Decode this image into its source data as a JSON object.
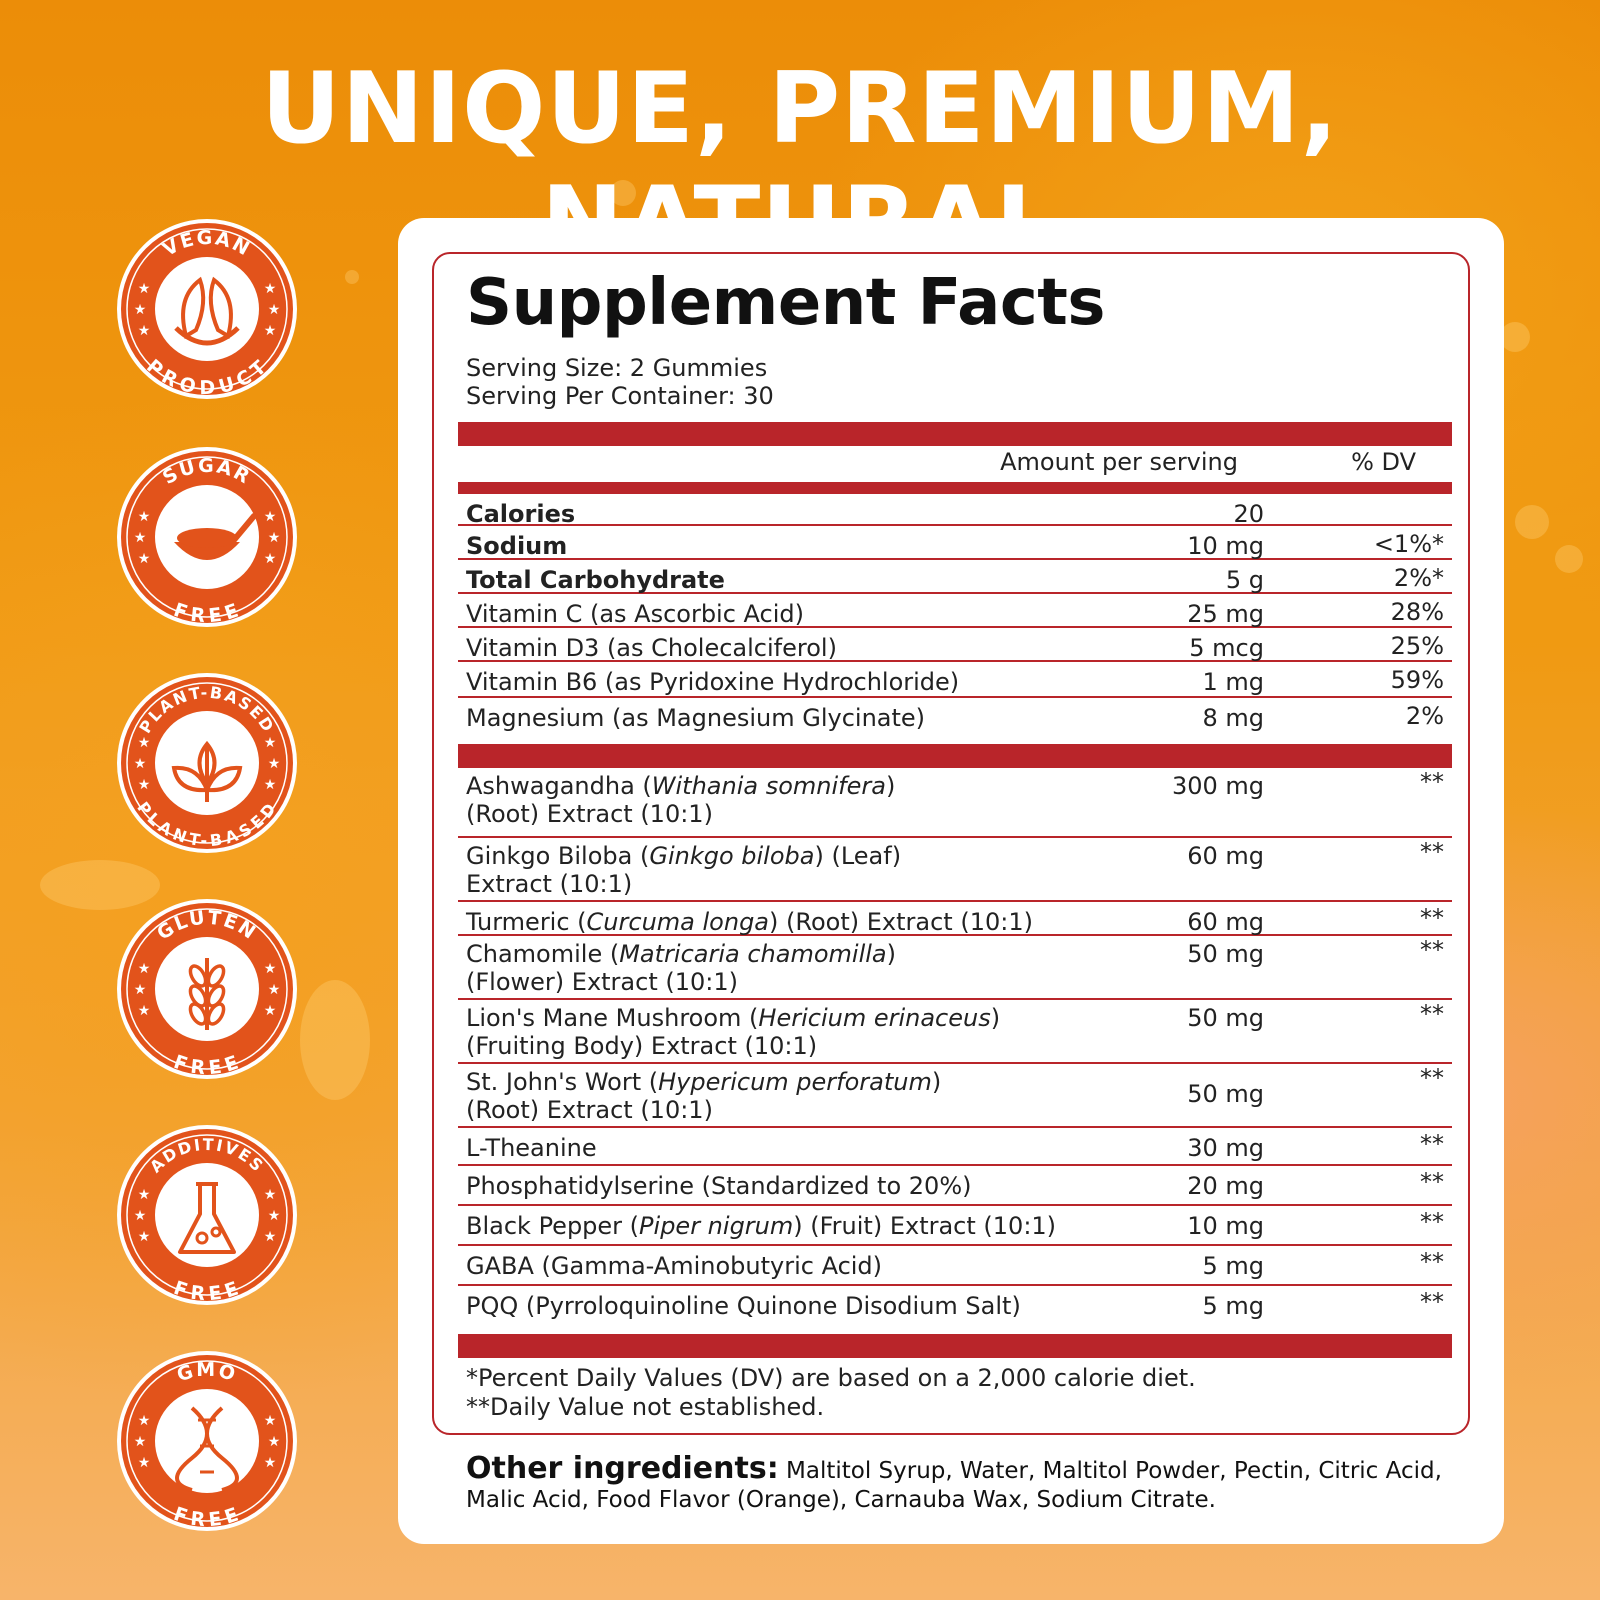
{
  "headline": "UNIQUE, PREMIUM, NATURAL",
  "badges": [
    {
      "top_text": "VEGAN",
      "bottom_text": "PRODUCT",
      "icon": "leaf-hands-icon"
    },
    {
      "top_text": "SUGAR",
      "bottom_text": "FREE",
      "icon": "sugar-spoon-icon"
    },
    {
      "top_text": "PLANT-BASED",
      "bottom_text": "PLANT-BASED",
      "icon": "plant-icon"
    },
    {
      "top_text": "GLUTEN",
      "bottom_text": "FREE",
      "icon": "wheat-icon"
    },
    {
      "top_text": "ADDITIVES",
      "bottom_text": "FREE",
      "icon": "flask-icon"
    },
    {
      "top_text": "GMO",
      "bottom_text": "FREE",
      "icon": "dna-icon"
    }
  ],
  "facts": {
    "title": "Supplement Facts",
    "serving_size": "Serving Size: 2 Gummies",
    "serving_per_container": "Serving Per Container: 30",
    "amount_header": "Amount per serving",
    "dv_header": "% DV",
    "nutrients": [
      {
        "name": "Calories",
        "amount": "20",
        "dv": ""
      },
      {
        "name": "Sodium",
        "amount": "10 mg",
        "dv": "<1%*"
      },
      {
        "name": "Total Carbohydrate",
        "amount": "5 g",
        "dv": "2%*"
      },
      {
        "name": "Vitamin C (as Ascorbic Acid)",
        "amount": "25 mg",
        "dv": "28%"
      },
      {
        "name": "Vitamin D3 (as Cholecalciferol)",
        "amount": "5 mcg",
        "dv": "25%"
      },
      {
        "name": "Vitamin B6 (as Pyridoxine Hydrochloride)",
        "amount": "1 mg",
        "dv": "59%"
      },
      {
        "name": "Magnesium (as Magnesium Glycinate)",
        "amount": "8 mg",
        "dv": "2%"
      }
    ],
    "extracts": [
      {
        "name_a": "Ashwagandha (",
        "latin": "Withania somnifera",
        "name_b": ")",
        "line2": "(Root) Extract (10:1)",
        "amount": "300 mg",
        "dv": "**"
      },
      {
        "name_a": "Ginkgo Biloba (",
        "latin": "Ginkgo biloba",
        "name_b": ") (Leaf)",
        "line2": "Extract (10:1)",
        "amount": "60 mg",
        "dv": "**"
      },
      {
        "name_a": "Turmeric (",
        "latin": "Curcuma longa",
        "name_b": ") (Root) Extract (10:1)",
        "line2": "",
        "amount": "60 mg",
        "dv": "**"
      },
      {
        "name_a": "Chamomile (",
        "latin": "Matricaria chamomilla",
        "name_b": ")",
        "line2": "(Flower) Extract (10:1)",
        "amount": "50 mg",
        "dv": "**"
      },
      {
        "name_a": "Lion's Mane Mushroom (",
        "latin": "Hericium erinaceus",
        "name_b": ")",
        "line2": "(Fruiting Body) Extract (10:1)",
        "amount": "50 mg",
        "dv": "**"
      },
      {
        "name_a": "St. John's Wort (",
        "latin": "Hypericum perforatum",
        "name_b": ")",
        "line2": "(Root) Extract (10:1)",
        "amount": "50 mg",
        "dv": "**"
      },
      {
        "name_a": "L-Theanine",
        "latin": "",
        "name_b": "",
        "line2": "",
        "amount": "30 mg",
        "dv": "**"
      },
      {
        "name_a": "Phosphatidylserine (Standardized to 20%)",
        "latin": "",
        "name_b": "",
        "line2": "",
        "amount": "20 mg",
        "dv": "**"
      },
      {
        "name_a": "Black Pepper (",
        "latin": "Piper nigrum",
        "name_b": ") (Fruit) Extract (10:1)",
        "line2": "",
        "amount": "10 mg",
        "dv": "**"
      },
      {
        "name_a": "GABA (Gamma-Aminobutyric Acid)",
        "latin": "",
        "name_b": "",
        "line2": "",
        "amount": "5 mg",
        "dv": "**"
      },
      {
        "name_a": "PQQ (Pyrroloquinoline Quinone Disodium Salt)",
        "latin": "",
        "name_b": "",
        "line2": "",
        "amount": "5 mg",
        "dv": "**"
      }
    ],
    "footnote_1": "*Percent Daily Values (DV) are based on a 2,000 calorie diet.",
    "footnote_2": "**Daily Value not established.",
    "other_label": "Other ingredients:",
    "other_text": " Maltitol Syrup, Water, Maltitol Powder,  Pectin, Citric Acid, Malic Acid, Food Flavor (Orange), Carnauba Wax, Sodium Citrate."
  },
  "colors": {
    "accent_red": "#b9252a",
    "badge_orange": "#e2531b",
    "background_orange": "#ec8d08"
  }
}
